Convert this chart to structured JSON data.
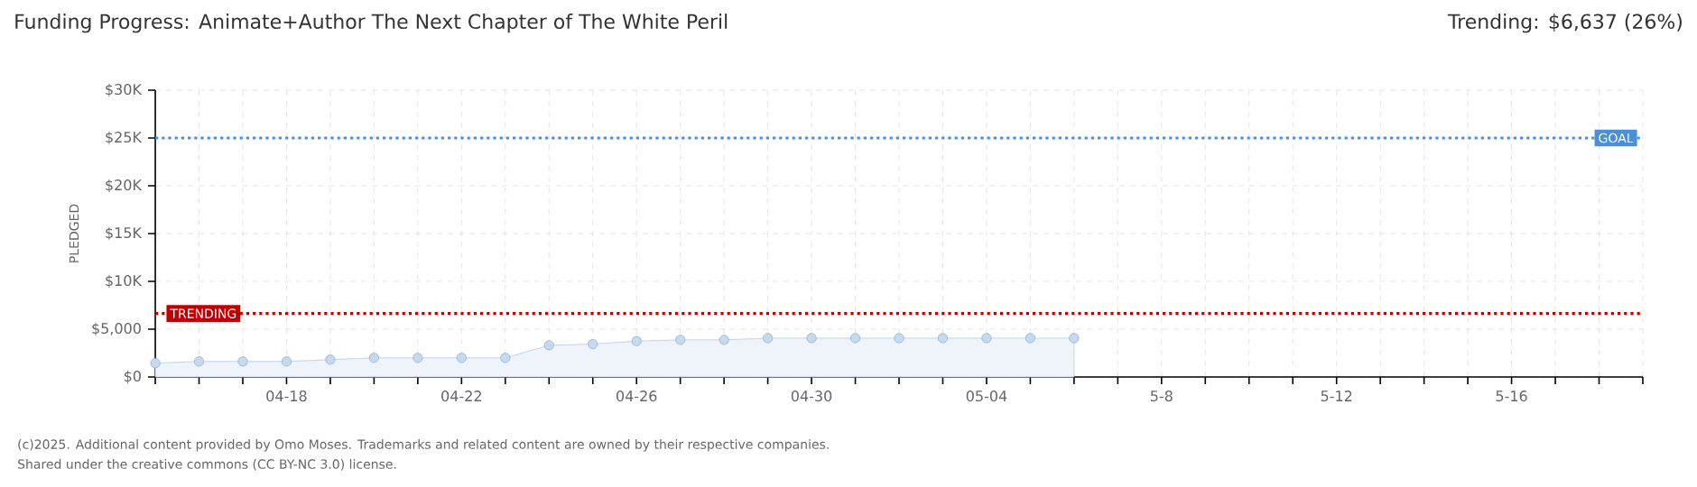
{
  "chart_data": {
    "type": "area",
    "title": "Funding Progress: Animate+Author The Next Chapter of The White Peril",
    "subtitle": "Trending: $6,637 (26%)",
    "ylabel": "PLEDGED",
    "categories": [
      null,
      null,
      null,
      "04-18",
      null,
      null,
      null,
      "04-22",
      null,
      null,
      null,
      "04-26",
      null,
      null,
      null,
      "04-30",
      null,
      null,
      null,
      "05-04",
      null,
      null,
      null,
      "5-8",
      null,
      null,
      null,
      "5-12",
      null,
      null,
      null,
      "5-16",
      null,
      null,
      null
    ],
    "series": [
      {
        "color": "#8fb4dc",
        "values": [
          1440,
          1620,
          1620,
          1620,
          1810,
          2000,
          2000,
          2000,
          2000,
          3310,
          3440,
          3750,
          3880,
          3880,
          4060,
          4060,
          4060,
          4060,
          4060,
          4060,
          4060,
          4060,
          null,
          null,
          null,
          null,
          null,
          null,
          null,
          null,
          null,
          null,
          null,
          null,
          null
        ]
      }
    ],
    "ylim": [
      0,
      30000
    ],
    "yticks": [
      {
        "value": 0,
        "label": "$0"
      },
      {
        "value": 5000,
        "label": "$5,000"
      },
      {
        "value": 10000,
        "label": "$10K"
      },
      {
        "value": 15000,
        "label": "$15K"
      },
      {
        "value": 20000,
        "label": "$20K"
      },
      {
        "value": 25000,
        "label": "$25K"
      },
      {
        "value": 30000,
        "label": "$30K"
      }
    ],
    "ref_lines": [
      {
        "axis": "y",
        "value": 25000,
        "label": "GOAL",
        "color": "#4a8fd8",
        "line_style": "dotted"
      },
      {
        "axis": "y",
        "value": 6637,
        "label": "TRENDING",
        "color": "#c00000",
        "line_style": "dotted"
      }
    ],
    "grid": true,
    "marker": "circle",
    "annotations": [
      "(c)2025. Additional content provided by Omo Moses. Trademarks and related content are owned by their respective companies.",
      "Shared under the creative commons (CC BY-NC 3.0) license."
    ]
  }
}
